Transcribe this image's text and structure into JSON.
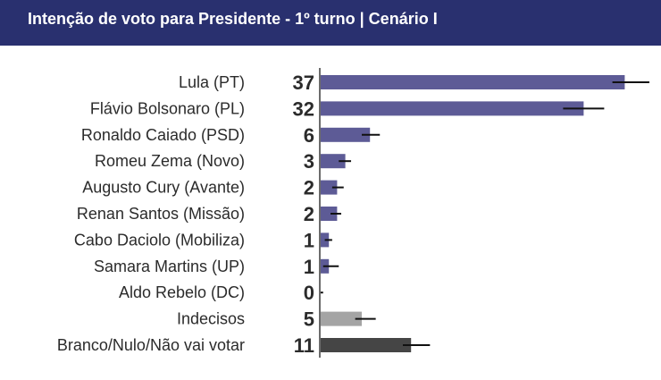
{
  "header": {
    "title": "Intenção de voto para Presidente - 1º turno | Cenário I",
    "background": "#29306f"
  },
  "colors": {
    "candidate": "#5d5b96",
    "undecided": "#a4a4a4",
    "blank": "#454545",
    "error_bar": "#111111",
    "axis": "#3a3a3a"
  },
  "chart_data": {
    "type": "bar",
    "orientation": "horizontal",
    "title": "Intenção de voto para Presidente - 1º turno | Cenário I",
    "xlabel": "",
    "ylabel": "",
    "xlim": [
      0,
      40
    ],
    "grid": false,
    "legend": "none",
    "categories": [
      "Lula (PT)",
      "Flávio Bolsonaro (PL)",
      "Ronaldo Caiado (PSD)",
      "Romeu Zema (Novo)",
      "Augusto Cury (Avante)",
      "Renan Santos (Missão)",
      "Cabo Daciolo (Mobiliza)",
      "Samara Martins (UP)",
      "Aldo Rebelo (DC)",
      "Indecisos",
      "Branco/Nulo/Não vai votar"
    ],
    "values": [
      37,
      32,
      6,
      3,
      2,
      2,
      1,
      1,
      0,
      5,
      11
    ],
    "error_range": [
      [
        35.5,
        40
      ],
      [
        29.5,
        34.5
      ],
      [
        5,
        7.2
      ],
      [
        2.2,
        3.7
      ],
      [
        1.4,
        2.8
      ],
      [
        1.2,
        2.5
      ],
      [
        0.5,
        1.4
      ],
      [
        0.3,
        2.2
      ],
      [
        0,
        0.3
      ],
      [
        4.2,
        6.7
      ],
      [
        10,
        13.3
      ]
    ],
    "bar_color_group": [
      "candidate",
      "candidate",
      "candidate",
      "candidate",
      "candidate",
      "candidate",
      "candidate",
      "candidate",
      "candidate",
      "undecided",
      "blank"
    ]
  }
}
